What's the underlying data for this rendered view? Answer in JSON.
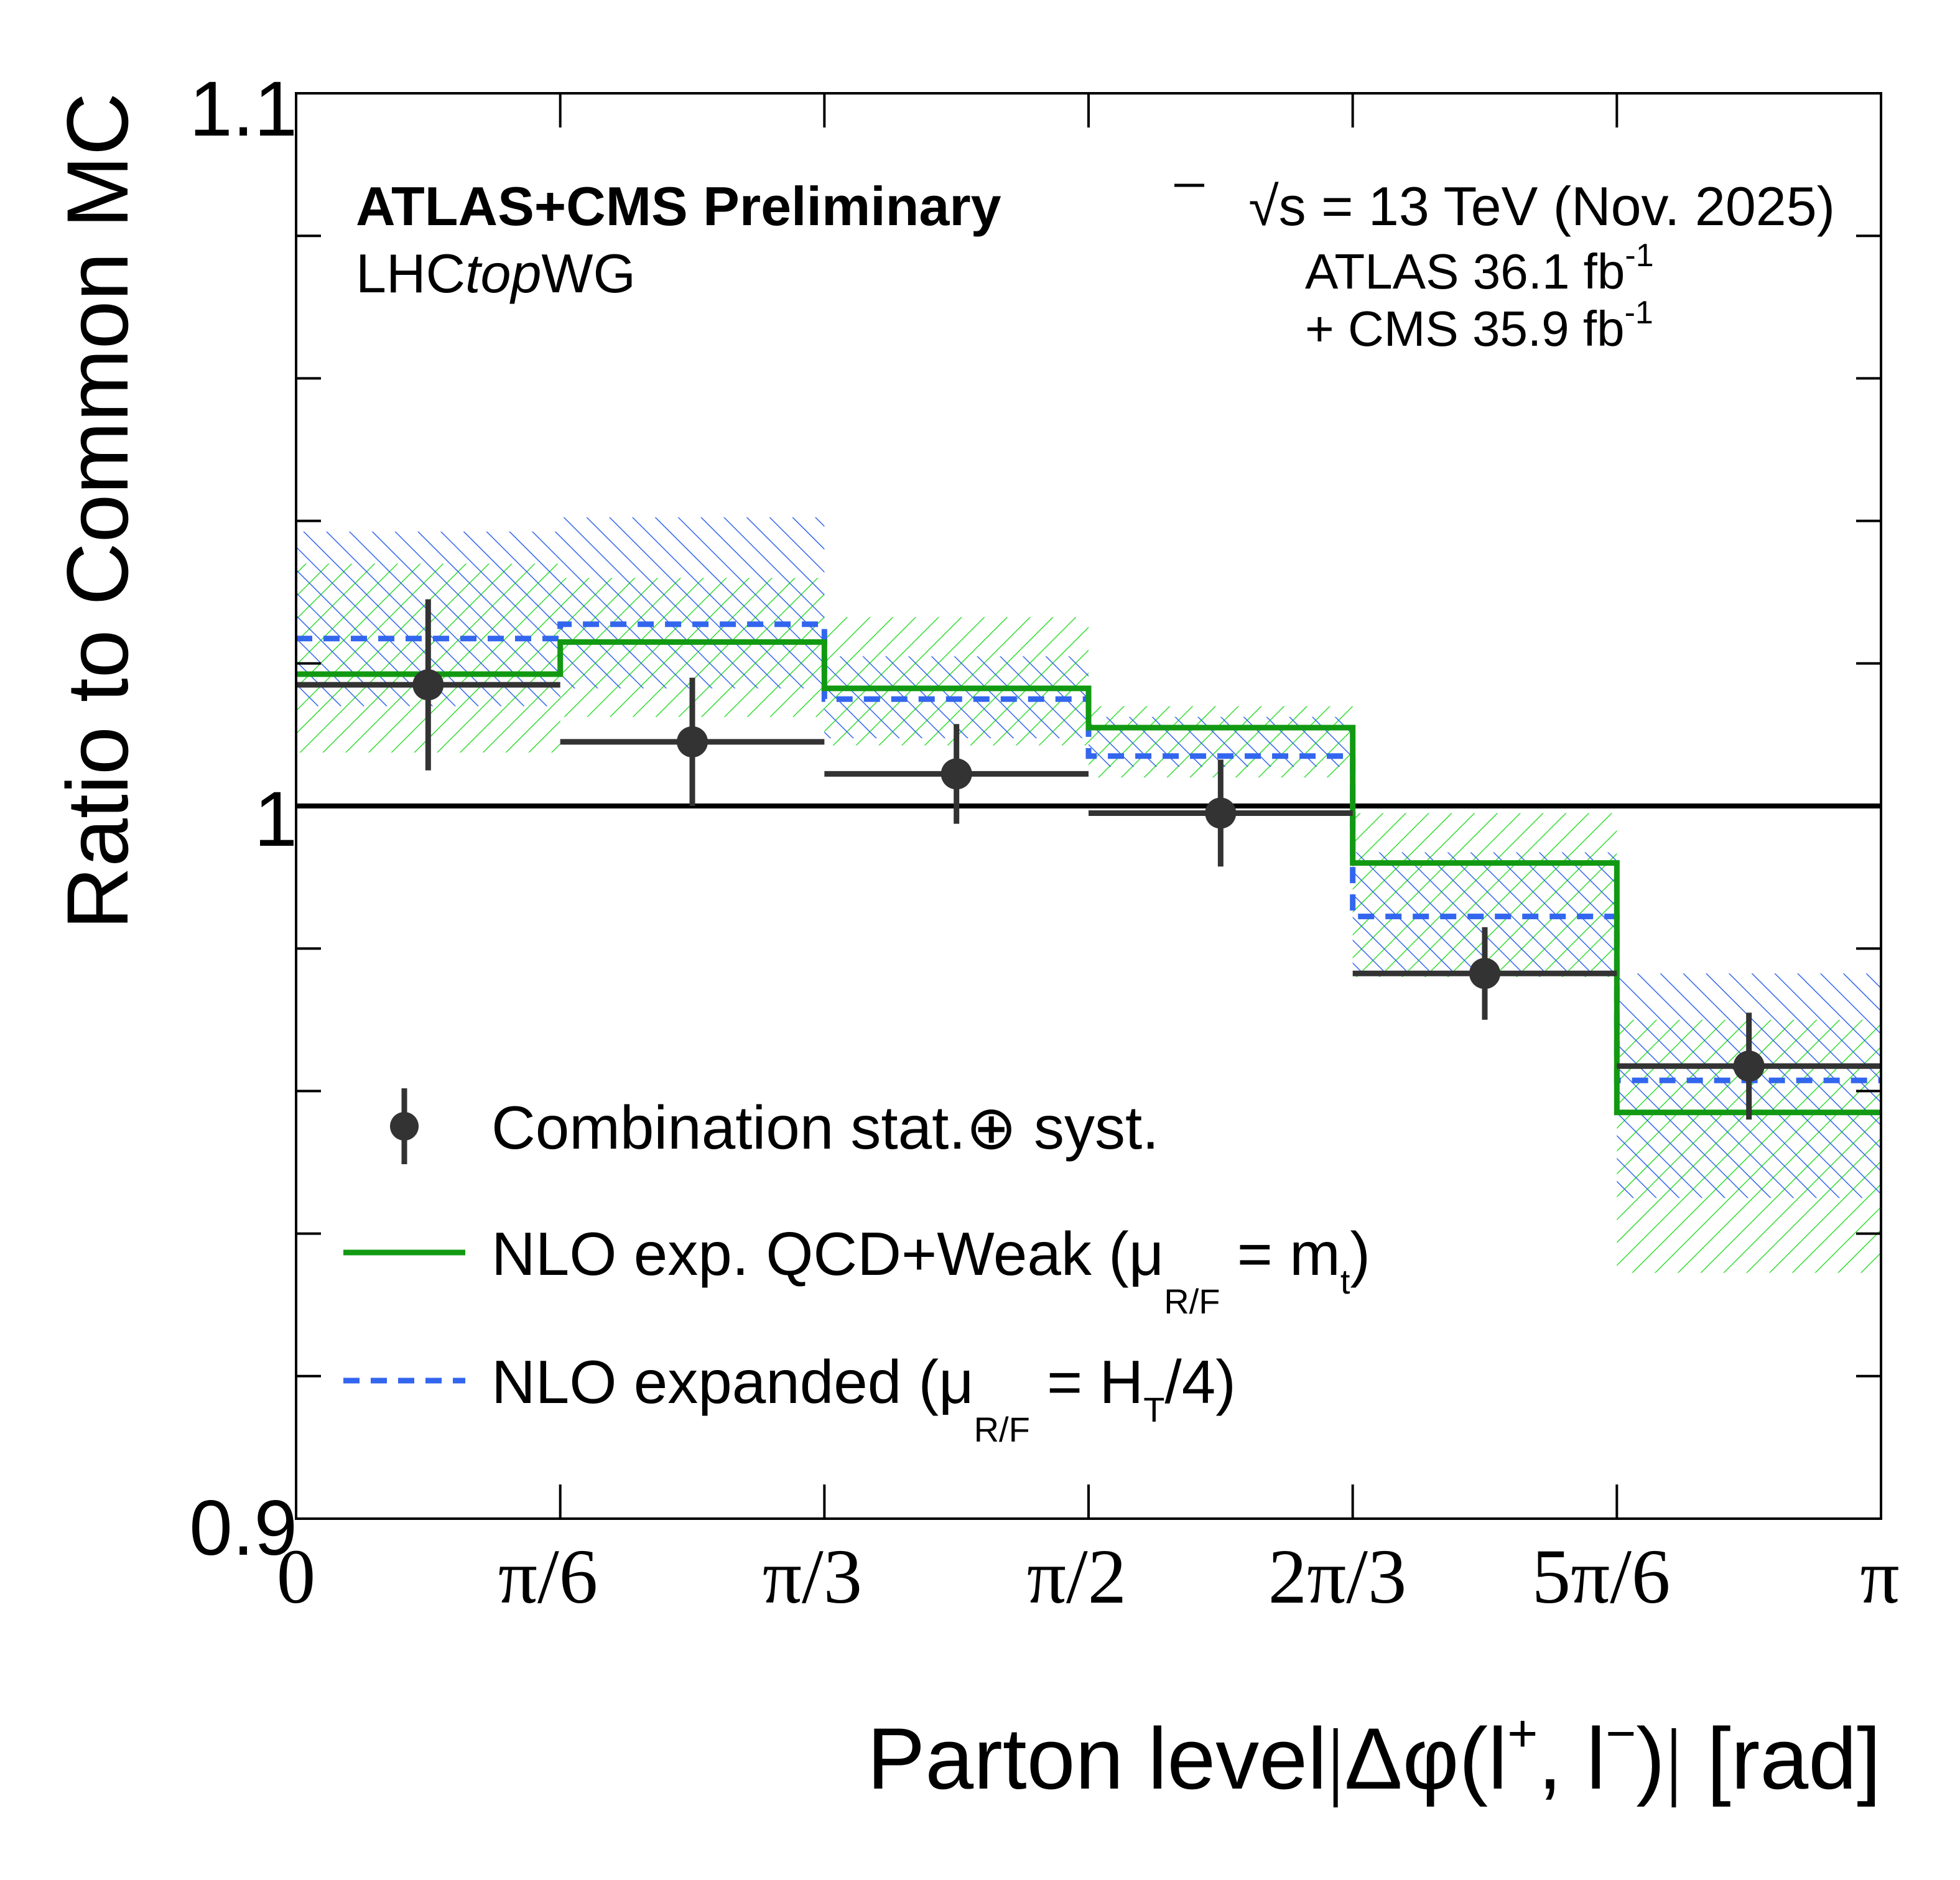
{
  "chart_data": {
    "type": "step",
    "x_ticks": [
      "0",
      "π/6",
      "π/3",
      "π/2",
      "2π/3",
      "5π/6",
      "π"
    ],
    "xlim": [
      0,
      3.14159
    ],
    "ylim": [
      0.9,
      1.1
    ],
    "y_ticks": [
      "0.9",
      "1",
      "1.1"
    ],
    "bin_edges": [
      0,
      0.5236,
      1.0472,
      1.5708,
      2.0944,
      2.618,
      3.1416
    ],
    "reference_line": 1.0,
    "ylabel": "Ratio to Common MC",
    "xlabel": {
      "prefix": "Parton level",
      "bar1": "|",
      "delta": "Δφ(l",
      "sup1": "+",
      "mid": ", l",
      "sup2": "−",
      "close": ")",
      "bar2": "|",
      "unit": " [rad]"
    },
    "experiment": "ATLAS+CMS Preliminary",
    "group": {
      "pre": "LHC",
      "italic": "top",
      "post": "WG"
    },
    "energy": {
      "sqrt": "√",
      "s": "s",
      "rest": " = 13 TeV (Nov. 2025)"
    },
    "lumi1": {
      "text": "ATLAS 36.1 fb",
      "sup": "-1"
    },
    "lumi2": {
      "text": "+ CMS 35.9 fb",
      "sup": "-1"
    },
    "series": [
      {
        "name": "Combination stat.⊕ syst.",
        "kind": "data",
        "color": "#333333",
        "values": [
          1.017,
          1.009,
          1.0045,
          0.999,
          0.9765,
          0.9635
        ],
        "errors": [
          0.012,
          0.009,
          0.007,
          0.0075,
          0.0065,
          0.0075
        ]
      },
      {
        "name": "NLO exp. QCD+Weak (μ",
        "sub": "R/F",
        "mid": " = m",
        "sub2": "t",
        "close": ")",
        "kind": "line",
        "color": "#129912",
        "values": [
          1.0185,
          1.023,
          1.0165,
          1.011,
          0.992,
          0.957
        ],
        "band_low": [
          1.0075,
          1.0125,
          1.0085,
          1.004,
          0.976,
          0.9345
        ],
        "band_high": [
          1.034,
          1.032,
          1.0265,
          1.014,
          0.999,
          0.97
        ]
      },
      {
        "name": "NLO expanded (μ",
        "sub": "R/F",
        "mid": " = H",
        "sub2": "T",
        "close": "/4)",
        "kind": "dashed",
        "color": "#3366ee",
        "values": [
          1.0235,
          1.0255,
          1.015,
          1.007,
          0.9845,
          0.9615
        ],
        "band_low": [
          1.014,
          1.0165,
          1.0095,
          1.0055,
          0.9765,
          0.945
        ],
        "band_high": [
          1.0385,
          1.0405,
          1.021,
          1.0125,
          0.9935,
          0.9765
        ]
      }
    ],
    "legend_position": "bottom-left"
  }
}
